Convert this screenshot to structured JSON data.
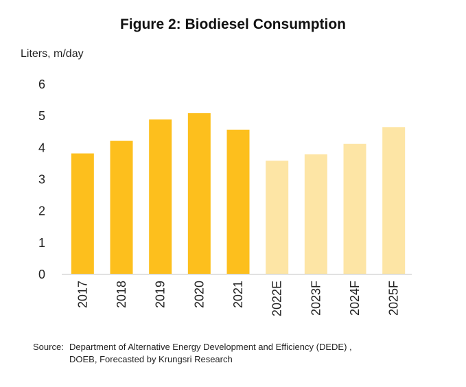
{
  "chart_data": {
    "type": "bar",
    "title": "Figure 2: Biodiesel Consumption",
    "ylabel": "Liters, m/day",
    "xlabel": "",
    "categories": [
      "2017",
      "2018",
      "2019",
      "2020",
      "2021",
      "2022E",
      "2023F",
      "2024F",
      "2025F"
    ],
    "values": [
      3.8,
      4.2,
      4.87,
      5.07,
      4.55,
      3.57,
      3.77,
      4.1,
      4.63
    ],
    "ylim": [
      0,
      6
    ],
    "yticks": [
      "0",
      "1",
      "2",
      "3",
      "4",
      "5",
      "6"
    ],
    "grid": false,
    "actual_color": "#FDBF1D",
    "forecast_color": "#FDE5A5",
    "forecast_categories": [
      "2022E",
      "2023F",
      "2024F",
      "2025F"
    ]
  },
  "source": {
    "label": "Source:",
    "line1": "Department of Alternative Energy Development and Efficiency (DEDE) ,",
    "line2": "DOEB, Forecasted by Krungsri Research"
  }
}
